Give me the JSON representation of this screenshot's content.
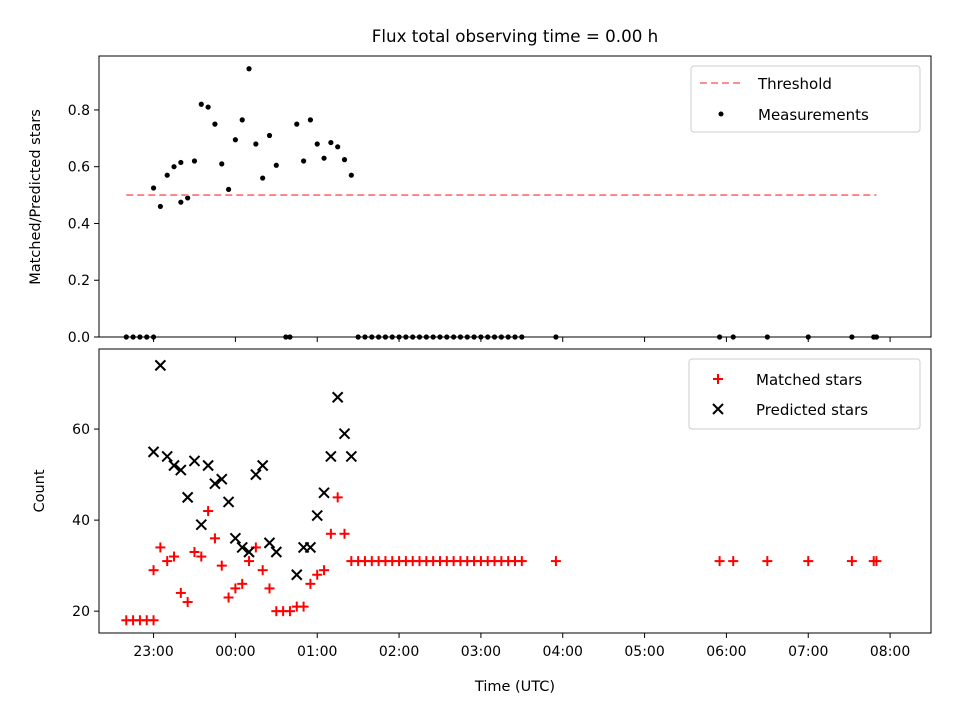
{
  "chart_data": [
    {
      "type": "scatter",
      "title": "Flux total observing time = 0.00 h",
      "ylabel": "Matched/Predicted stars",
      "ylim": [
        0,
        0.99
      ],
      "yticks": [
        "0.0",
        "0.2",
        "0.4",
        "0.6",
        "0.8"
      ],
      "ytick_values": [
        0,
        0.2,
        0.4,
        0.6,
        0.8
      ],
      "threshold": {
        "name": "Threshold",
        "value": 0.5,
        "x_start": "22:40",
        "x_end": "07:50",
        "color": "#ff7f7f"
      },
      "legend_position": "top-right",
      "series": [
        {
          "name": "Measurements",
          "color": "#000000",
          "points": [
            [
              "22:40",
              0
            ],
            [
              "22:45",
              0
            ],
            [
              "22:50",
              0
            ],
            [
              "22:55",
              0
            ],
            [
              "23:00",
              0
            ],
            [
              "23:00",
              0.525
            ],
            [
              "23:05",
              0.46
            ],
            [
              "23:10",
              0.57
            ],
            [
              "23:15",
              0.6
            ],
            [
              "23:20",
              0.615
            ],
            [
              "23:20",
              0.475
            ],
            [
              "23:25",
              0.49
            ],
            [
              "23:30",
              0.62
            ],
            [
              "23:35",
              0.82
            ],
            [
              "23:40",
              0.81
            ],
            [
              "23:45",
              0.75
            ],
            [
              "23:50",
              0.61
            ],
            [
              "23:55",
              0.52
            ],
            [
              "00:00",
              0.695
            ],
            [
              "00:05",
              0.765
            ],
            [
              "00:10",
              0.945
            ],
            [
              "00:15",
              0.68
            ],
            [
              "00:20",
              0.56
            ],
            [
              "00:25",
              0.71
            ],
            [
              "00:30",
              0.605
            ],
            [
              "00:37",
              0
            ],
            [
              "00:40",
              0
            ],
            [
              "00:45",
              0.75
            ],
            [
              "00:50",
              0.62
            ],
            [
              "00:55",
              0.765
            ],
            [
              "01:00",
              0.68
            ],
            [
              "01:05",
              0.63
            ],
            [
              "01:10",
              0.685
            ],
            [
              "01:15",
              0.67
            ],
            [
              "01:20",
              0.625
            ],
            [
              "01:25",
              0.57
            ],
            [
              "01:30",
              0
            ],
            [
              "01:35",
              0
            ],
            [
              "01:40",
              0
            ],
            [
              "01:45",
              0
            ],
            [
              "01:50",
              0
            ],
            [
              "01:55",
              0
            ],
            [
              "02:00",
              0
            ],
            [
              "02:05",
              0
            ],
            [
              "02:10",
              0
            ],
            [
              "02:15",
              0
            ],
            [
              "02:20",
              0
            ],
            [
              "02:25",
              0
            ],
            [
              "02:30",
              0
            ],
            [
              "02:35",
              0
            ],
            [
              "02:40",
              0
            ],
            [
              "02:45",
              0
            ],
            [
              "02:50",
              0
            ],
            [
              "02:55",
              0
            ],
            [
              "03:00",
              0
            ],
            [
              "03:05",
              0
            ],
            [
              "03:10",
              0
            ],
            [
              "03:15",
              0
            ],
            [
              "03:20",
              0
            ],
            [
              "03:25",
              0
            ],
            [
              "03:30",
              0
            ],
            [
              "03:55",
              0
            ],
            [
              "05:55",
              0
            ],
            [
              "06:05",
              0
            ],
            [
              "06:30",
              0
            ],
            [
              "07:00",
              0
            ],
            [
              "07:32",
              0
            ],
            [
              "07:48",
              0
            ],
            [
              "07:50",
              0
            ]
          ]
        }
      ]
    },
    {
      "type": "scatter",
      "xlabel": "Time (UTC)",
      "ylabel": "Count",
      "ylim": [
        15.2,
        77.6
      ],
      "yticks": [
        "20",
        "40",
        "60"
      ],
      "ytick_values": [
        20,
        40,
        60
      ],
      "xlim_minutes": [
        1340,
        1950
      ],
      "xticks": [
        "23:00",
        "00:00",
        "01:00",
        "02:00",
        "03:00",
        "04:00",
        "05:00",
        "06:00",
        "07:00",
        "08:00"
      ],
      "legend_position": "top-right",
      "series": [
        {
          "name": "Matched stars",
          "marker": "plus",
          "color": "#ff0000",
          "points": [
            [
              "22:40",
              18
            ],
            [
              "22:45",
              18
            ],
            [
              "22:50",
              18
            ],
            [
              "22:55",
              18
            ],
            [
              "23:00",
              18
            ],
            [
              "23:00",
              29
            ],
            [
              "23:05",
              34
            ],
            [
              "23:10",
              31
            ],
            [
              "23:15",
              32
            ],
            [
              "23:20",
              24
            ],
            [
              "23:25",
              22
            ],
            [
              "23:30",
              33
            ],
            [
              "23:35",
              32
            ],
            [
              "23:40",
              42
            ],
            [
              "23:45",
              36
            ],
            [
              "23:50",
              30
            ],
            [
              "23:55",
              23
            ],
            [
              "00:00",
              25
            ],
            [
              "00:05",
              26
            ],
            [
              "00:10",
              31
            ],
            [
              "00:15",
              34
            ],
            [
              "00:20",
              29
            ],
            [
              "00:25",
              25
            ],
            [
              "00:30",
              20
            ],
            [
              "00:35",
              20
            ],
            [
              "00:40",
              20
            ],
            [
              "00:45",
              21
            ],
            [
              "00:50",
              21
            ],
            [
              "00:55",
              26
            ],
            [
              "01:00",
              28
            ],
            [
              "01:05",
              29
            ],
            [
              "01:10",
              37
            ],
            [
              "01:15",
              45
            ],
            [
              "01:20",
              37
            ],
            [
              "01:25",
              31
            ],
            [
              "01:30",
              31
            ],
            [
              "01:35",
              31
            ],
            [
              "01:40",
              31
            ],
            [
              "01:45",
              31
            ],
            [
              "01:50",
              31
            ],
            [
              "01:55",
              31
            ],
            [
              "02:00",
              31
            ],
            [
              "02:05",
              31
            ],
            [
              "02:10",
              31
            ],
            [
              "02:15",
              31
            ],
            [
              "02:20",
              31
            ],
            [
              "02:25",
              31
            ],
            [
              "02:30",
              31
            ],
            [
              "02:35",
              31
            ],
            [
              "02:40",
              31
            ],
            [
              "02:45",
              31
            ],
            [
              "02:50",
              31
            ],
            [
              "02:55",
              31
            ],
            [
              "03:00",
              31
            ],
            [
              "03:05",
              31
            ],
            [
              "03:10",
              31
            ],
            [
              "03:15",
              31
            ],
            [
              "03:20",
              31
            ],
            [
              "03:25",
              31
            ],
            [
              "03:30",
              31
            ],
            [
              "03:55",
              31
            ],
            [
              "05:55",
              31
            ],
            [
              "06:05",
              31
            ],
            [
              "06:30",
              31
            ],
            [
              "07:00",
              31
            ],
            [
              "07:32",
              31
            ],
            [
              "07:48",
              31
            ],
            [
              "07:50",
              31
            ]
          ]
        },
        {
          "name": "Predicted stars",
          "marker": "x",
          "color": "#000000",
          "points": [
            [
              "23:00",
              55
            ],
            [
              "23:05",
              74
            ],
            [
              "23:10",
              54
            ],
            [
              "23:15",
              52
            ],
            [
              "23:20",
              51
            ],
            [
              "23:25",
              45
            ],
            [
              "23:30",
              53
            ],
            [
              "23:35",
              39
            ],
            [
              "23:40",
              52
            ],
            [
              "23:45",
              48
            ],
            [
              "23:50",
              49
            ],
            [
              "23:55",
              44
            ],
            [
              "00:00",
              36
            ],
            [
              "00:05",
              34
            ],
            [
              "00:10",
              33
            ],
            [
              "00:15",
              50
            ],
            [
              "00:20",
              52
            ],
            [
              "00:25",
              35
            ],
            [
              "00:30",
              33
            ],
            [
              "00:45",
              28
            ],
            [
              "00:50",
              34
            ],
            [
              "00:55",
              34
            ],
            [
              "01:00",
              41
            ],
            [
              "01:05",
              46
            ],
            [
              "01:10",
              54
            ],
            [
              "01:15",
              67
            ],
            [
              "01:20",
              59
            ],
            [
              "01:25",
              54
            ]
          ]
        }
      ]
    }
  ]
}
